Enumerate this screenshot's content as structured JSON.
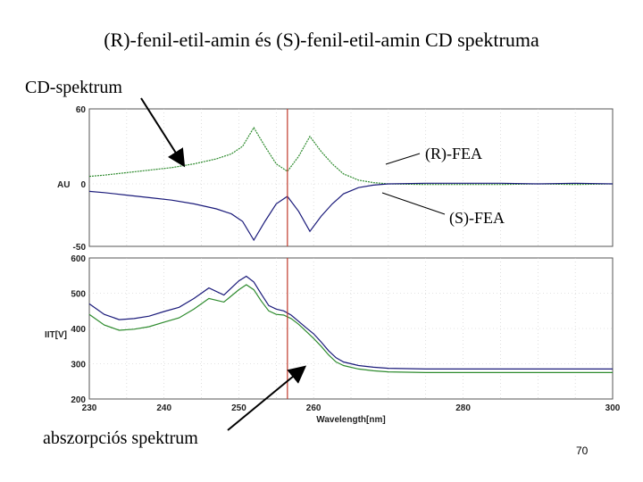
{
  "slide": {
    "title": "(R)-fenil-etil-amin és (S)-fenil-etil-amin CD spektruma",
    "cd_label": "CD-spektrum",
    "abs_label": "abszorpciós spektrum",
    "page_number": "70"
  },
  "colors": {
    "r_fea": "#2e8b2e",
    "s_fea": "#1a1a7a",
    "marker": "#c0392b",
    "grid": "#c8c8c8",
    "axis_text": "#222222"
  },
  "chart_data": [
    {
      "type": "line",
      "title": "",
      "ylabel": "AU",
      "xlim": [
        230,
        300
      ],
      "ylim": [
        -50,
        60
      ],
      "yticks": [
        60,
        0,
        -50
      ],
      "vline_x": 256.5,
      "series": [
        {
          "name": "(R)-FEA",
          "x": [
            230,
            232,
            235,
            238,
            241,
            244,
            247,
            249,
            250.5,
            252,
            253.5,
            255,
            256.5,
            258,
            259.5,
            261,
            262.5,
            264,
            266,
            268,
            270,
            275,
            280,
            285,
            290,
            295,
            300
          ],
          "y": [
            6,
            7,
            9,
            11,
            13,
            16,
            20,
            24,
            30,
            45,
            30,
            16,
            10,
            22,
            38,
            26,
            16,
            8,
            3,
            1,
            0,
            -0.5,
            -0.5,
            -0.5,
            0,
            -0.5,
            0
          ]
        },
        {
          "name": "(S)-FEA",
          "x": [
            230,
            232,
            235,
            238,
            241,
            244,
            247,
            249,
            250.5,
            252,
            253.5,
            255,
            256.5,
            258,
            259.5,
            261,
            262.5,
            264,
            266,
            268,
            270,
            275,
            280,
            285,
            290,
            295,
            300
          ],
          "y": [
            -6,
            -7,
            -9,
            -11,
            -13,
            -16,
            -20,
            -24,
            -30,
            -45,
            -30,
            -16,
            -10,
            -22,
            -38,
            -26,
            -16,
            -8,
            -3,
            -1,
            0,
            0.5,
            0.5,
            0.5,
            0,
            0.5,
            0
          ]
        }
      ]
    },
    {
      "type": "line",
      "title": "",
      "xlabel": "Wavelength[nm]",
      "ylabel": "IIT[V]",
      "xlim": [
        230,
        300
      ],
      "ylim": [
        200,
        600
      ],
      "xticks": [
        230,
        240,
        250,
        260,
        280,
        300
      ],
      "yticks": [
        600,
        500,
        400,
        300,
        200
      ],
      "vline_x": 256.5,
      "series": [
        {
          "name": "(S)-FEA",
          "x": [
            230,
            232,
            234,
            236,
            238,
            240,
            242,
            244,
            246,
            248,
            250,
            251,
            252,
            253,
            254,
            255,
            256,
            257,
            258,
            259,
            260,
            261,
            262,
            263,
            264,
            266,
            268,
            270,
            275,
            280,
            290,
            300
          ],
          "y": [
            470,
            440,
            425,
            428,
            435,
            448,
            460,
            485,
            515,
            495,
            535,
            548,
            532,
            498,
            465,
            455,
            450,
            438,
            420,
            402,
            385,
            362,
            337,
            317,
            305,
            295,
            290,
            287,
            285,
            285,
            285,
            285
          ]
        },
        {
          "name": "(R)-FEA",
          "x": [
            230,
            232,
            234,
            236,
            238,
            240,
            242,
            244,
            246,
            248,
            250,
            251,
            252,
            253,
            254,
            255,
            256,
            257,
            258,
            259,
            260,
            261,
            262,
            263,
            264,
            266,
            268,
            270,
            275,
            280,
            290,
            300
          ],
          "y": [
            440,
            410,
            395,
            398,
            405,
            418,
            430,
            455,
            485,
            475,
            510,
            524,
            510,
            478,
            450,
            440,
            438,
            428,
            412,
            392,
            372,
            350,
            325,
            305,
            295,
            285,
            280,
            277,
            275,
            275,
            275,
            275
          ]
        }
      ]
    }
  ],
  "annotations": {
    "r_label": "(R)-FEA",
    "s_label": "(S)-FEA"
  }
}
